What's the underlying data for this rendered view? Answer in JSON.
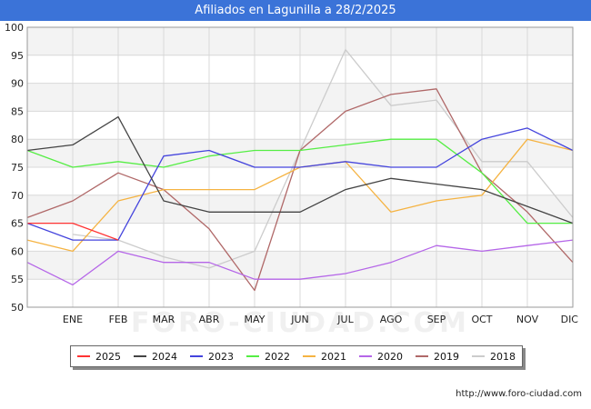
{
  "header": {
    "title": "Afiliados en Lagunilla a 28/2/2025"
  },
  "footer": {
    "source": "http://www.foro-ciudad.com"
  },
  "watermark": "FORO-CIUDAD.COM",
  "chart_data": {
    "type": "line",
    "title": "Afiliados en Lagunilla a 28/2/2025",
    "categories": [
      "",
      "ENE",
      "FEB",
      "MAR",
      "ABR",
      "MAY",
      "JUN",
      "JUL",
      "AGO",
      "SEP",
      "OCT",
      "NOV",
      "DIC"
    ],
    "ylim": [
      50,
      100
    ],
    "yticks": [
      50,
      55,
      60,
      65,
      70,
      75,
      80,
      85,
      90,
      95,
      100
    ],
    "grid": true,
    "legend_position": "bottom",
    "series": [
      {
        "name": "2025",
        "color": "#ff3333",
        "values": [
          65,
          65,
          62,
          null,
          null,
          null,
          null,
          null,
          null,
          null,
          null,
          null,
          null
        ]
      },
      {
        "name": "2024",
        "color": "#444444",
        "values": [
          78,
          79,
          84,
          69,
          67,
          67,
          67,
          71,
          73,
          72,
          71,
          68,
          65
        ]
      },
      {
        "name": "2023",
        "color": "#4444dd",
        "values": [
          65,
          62,
          62,
          77,
          78,
          75,
          75,
          76,
          75,
          75,
          80,
          82,
          78
        ]
      },
      {
        "name": "2022",
        "color": "#55ee44",
        "values": [
          78,
          75,
          76,
          75,
          77,
          78,
          78,
          79,
          80,
          80,
          74,
          65,
          65
        ]
      },
      {
        "name": "2021",
        "color": "#f5b342",
        "values": [
          62,
          60,
          69,
          71,
          71,
          71,
          75,
          76,
          67,
          69,
          70,
          80,
          78
        ]
      },
      {
        "name": "2020",
        "color": "#b566e8",
        "values": [
          58,
          54,
          60,
          58,
          58,
          55,
          55,
          56,
          58,
          61,
          60,
          61,
          62
        ]
      },
      {
        "name": "2019",
        "color": "#b06868",
        "values": [
          66,
          69,
          74,
          71,
          64,
          53,
          78,
          85,
          88,
          89,
          74,
          67,
          58
        ]
      },
      {
        "name": "2018",
        "color": "#cccccc",
        "values": [
          null,
          63,
          62,
          59,
          57,
          60,
          78,
          96,
          86,
          87,
          76,
          76,
          66
        ]
      }
    ]
  }
}
